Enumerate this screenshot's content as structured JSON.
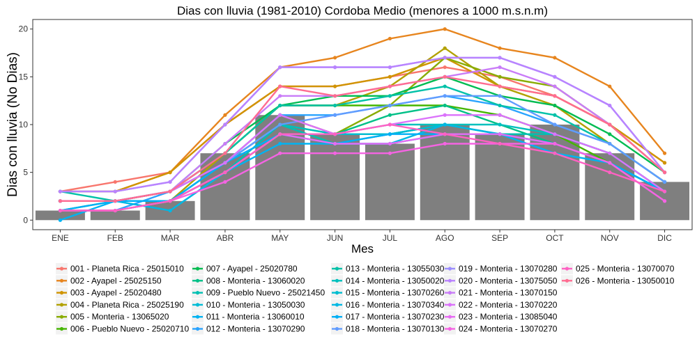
{
  "chart_data": {
    "type": "bar+line",
    "title": "Dias con lluvia (1981-2010) Cordoba Medio (menores a 1000 m.s.n.m)",
    "xlabel": "Mes",
    "ylabel": "Dias con lluvia (No Dias)",
    "categories": [
      "ENE",
      "FEB",
      "MAR",
      "ABR",
      "MAY",
      "JUN",
      "JUL",
      "AGO",
      "SEP",
      "OCT",
      "NOV",
      "DIC"
    ],
    "ylim": [
      -1,
      21
    ],
    "yticks": [
      0,
      5,
      10,
      15,
      20
    ],
    "grid": false,
    "legend_position": "bottom",
    "bar_color": "#7f7f7f",
    "bars": [
      1,
      1,
      2,
      7,
      11,
      9,
      8,
      10,
      9,
      10,
      7,
      4
    ],
    "series": [
      {
        "name": "001 - Planeta Rica - 25015010",
        "color": "#F8766D",
        "values": [
          3,
          4,
          5,
          10,
          14,
          14,
          15,
          16,
          15,
          13,
          10,
          6
        ]
      },
      {
        "name": "002 - Ayapel - 25025150",
        "color": "#E7851E",
        "values": [
          3,
          3,
          5,
          11,
          16,
          17,
          19,
          20,
          18,
          17,
          14,
          7
        ]
      },
      {
        "name": "003 - Ayapel - 25020480",
        "color": "#D09400",
        "values": [
          3,
          3,
          5,
          10,
          14,
          14,
          15,
          17,
          14,
          13,
          10,
          6
        ]
      },
      {
        "name": "004 - Planeta Rica - 25025190",
        "color": "#B2A100",
        "values": [
          2,
          2,
          2,
          7,
          12,
          12,
          14,
          18,
          14,
          12,
          8,
          4
        ]
      },
      {
        "name": "005 - Monteria - 13065020",
        "color": "#89AC00",
        "values": [
          2,
          2,
          3,
          6,
          11,
          9,
          12,
          17,
          15,
          14,
          10,
          5
        ]
      },
      {
        "name": "006 - Pueblo Nuevo - 25020710",
        "color": "#45B500",
        "values": [
          2,
          2,
          3,
          7,
          12,
          12,
          12,
          12,
          11,
          9,
          6,
          3
        ]
      },
      {
        "name": "007 - Ayapel - 25020780",
        "color": "#00BC51",
        "values": [
          2,
          2,
          3,
          8,
          12,
          13,
          13,
          15,
          13,
          12,
          9,
          5
        ]
      },
      {
        "name": "008 - Monteria - 13060020",
        "color": "#00C087",
        "values": [
          1,
          2,
          2,
          6,
          10,
          9,
          11,
          12,
          10,
          8,
          6,
          3
        ]
      },
      {
        "name": "009 - Pueblo Nuevo - 25021450",
        "color": "#00C0B2",
        "values": [
          1,
          1,
          2,
          5,
          10,
          8,
          9,
          10,
          9,
          9,
          7,
          3
        ]
      },
      {
        "name": "010 - Monteria - 13050030",
        "color": "#00BCD6",
        "values": [
          1,
          1,
          2,
          6,
          9,
          9,
          9,
          10,
          9,
          8,
          6,
          3
        ]
      },
      {
        "name": "011 - Monteria - 13060010",
        "color": "#00B3F2",
        "values": [
          0,
          2,
          1,
          5,
          8,
          8,
          8,
          9,
          9,
          7,
          6,
          3
        ]
      },
      {
        "name": "012 - Monteria - 13070290",
        "color": "#29A3FF",
        "values": [
          1,
          1,
          3,
          6,
          11,
          11,
          12,
          13,
          12,
          10,
          8,
          4
        ]
      },
      {
        "name": "013 - Monteria - 13055030",
        "color": "#00C1A8",
        "values": [
          3,
          2,
          3,
          7,
          12,
          12,
          13,
          14,
          12,
          11,
          8,
          4
        ]
      },
      {
        "name": "014 - Monteria - 13050020",
        "color": "#00C0BD",
        "values": [
          2,
          2,
          2,
          6,
          10,
          9,
          10,
          10,
          10,
          9,
          7,
          3
        ]
      },
      {
        "name": "015 - Monteria - 13070260",
        "color": "#00BDD0",
        "values": [
          2,
          2,
          2,
          5,
          9,
          9,
          9,
          10,
          9,
          8,
          6,
          3
        ]
      },
      {
        "name": "016 - Monteria - 13070340",
        "color": "#00B8E3",
        "values": [
          2,
          2,
          1,
          5,
          9,
          8,
          8,
          10,
          9,
          8,
          6,
          3
        ]
      },
      {
        "name": "017 - Monteria - 13070230",
        "color": "#00AFF6",
        "values": [
          1,
          2,
          2,
          6,
          9,
          8,
          9,
          9,
          9,
          8,
          6,
          3
        ]
      },
      {
        "name": "018 - Monteria - 13070130",
        "color": "#619CFF",
        "values": [
          2,
          2,
          3,
          6,
          10,
          11,
          12,
          13,
          13,
          10,
          8,
          4
        ]
      },
      {
        "name": "019 - Monteria - 13070280",
        "color": "#9C8DFF",
        "values": [
          3,
          3,
          4,
          10,
          16,
          16,
          16,
          17,
          17,
          15,
          12,
          5
        ]
      },
      {
        "name": "020 - Monteria - 13075050",
        "color": "#B983FF",
        "values": [
          3,
          3,
          4,
          10,
          16,
          16,
          16,
          17,
          17,
          15,
          12,
          5
        ]
      },
      {
        "name": "021 - Monteria - 13070150",
        "color": "#C97CF8",
        "values": [
          2,
          2,
          3,
          8,
          13,
          13,
          14,
          15,
          16,
          14,
          10,
          5
        ]
      },
      {
        "name": "022 - Monteria - 13070220",
        "color": "#DB72FB",
        "values": [
          2,
          2,
          3,
          6,
          11,
          9,
          10,
          11,
          11,
          9,
          7,
          3
        ]
      },
      {
        "name": "023 - Monteria - 13085040",
        "color": "#E76BF3",
        "values": [
          1,
          1,
          2,
          5,
          9,
          8,
          8,
          9,
          9,
          8,
          6,
          2
        ]
      },
      {
        "name": "024 - Monteria - 13070270",
        "color": "#F564E3",
        "values": [
          1,
          1,
          2,
          4,
          7,
          7,
          7,
          8,
          8,
          8,
          6,
          2
        ]
      },
      {
        "name": "025 - Monteria - 13070070",
        "color": "#FF61C3",
        "values": [
          1,
          1,
          2,
          5,
          9,
          9,
          10,
          9,
          8,
          7,
          5,
          3
        ]
      },
      {
        "name": "026 - Monteria - 13050010",
        "color": "#FF6C91",
        "values": [
          2,
          2,
          3,
          7,
          14,
          13,
          14,
          15,
          14,
          13,
          10,
          5
        ]
      }
    ]
  }
}
